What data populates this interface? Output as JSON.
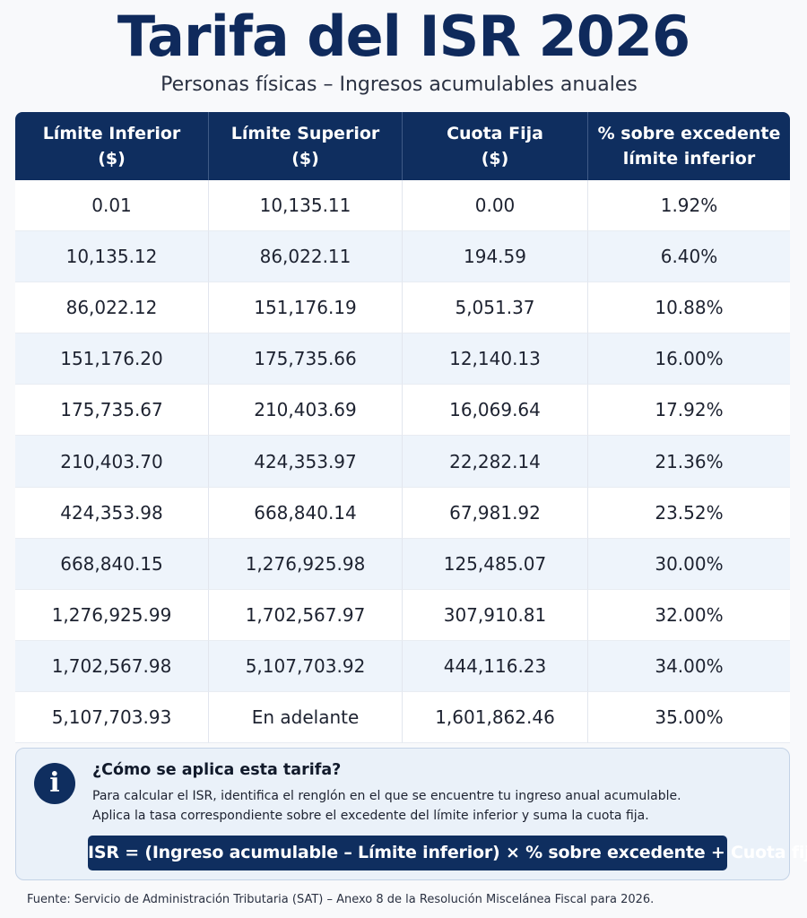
{
  "title": "Tarifa del ISR 2026",
  "subtitle": "Personas físicas – Ingresos acumulables anuales",
  "table": {
    "headers": [
      {
        "line1": "Límite Inferior",
        "line2": "($)"
      },
      {
        "line1": "Límite Superior",
        "line2": "($)"
      },
      {
        "line1": "Cuota Fija",
        "line2": "($)"
      },
      {
        "line1": "% sobre excedente",
        "line2": "límite inferior"
      }
    ],
    "rows": [
      [
        "0.01",
        "10,135.11",
        "0.00",
        "1.92%"
      ],
      [
        "10,135.12",
        "86,022.11",
        "194.59",
        "6.40%"
      ],
      [
        "86,022.12",
        "151,176.19",
        "5,051.37",
        "10.88%"
      ],
      [
        "151,176.20",
        "175,735.66",
        "12,140.13",
        "16.00%"
      ],
      [
        "175,735.67",
        "210,403.69",
        "16,069.64",
        "17.92%"
      ],
      [
        "210,403.70",
        "424,353.97",
        "22,282.14",
        "21.36%"
      ],
      [
        "424,353.98",
        "668,840.14",
        "67,981.92",
        "23.52%"
      ],
      [
        "668,840.15",
        "1,276,925.98",
        "125,485.07",
        "30.00%"
      ],
      [
        "1,276,925.99",
        "1,702,567.97",
        "307,910.81",
        "32.00%"
      ],
      [
        "1,702,567.98",
        "5,107,703.92",
        "444,116.23",
        "34.00%"
      ],
      [
        "5,107,703.93",
        "En adelante",
        "1,601,862.46",
        "35.00%"
      ]
    ]
  },
  "info": {
    "icon": "info-icon",
    "icon_glyph": "i",
    "heading": "¿Cómo se aplica esta tarifa?",
    "line1": "Para calcular el ISR, identifica el renglón en el que se encuentre tu ingreso anual acumulable.",
    "line2": "Aplica la tasa correspondiente sobre el excedente del límite inferior y suma la cuota fija.",
    "formula": "ISR = (Ingreso acumulable – Límite inferior) × % sobre excedente + Cuota fija"
  },
  "source": "Fuente: Servicio de Administración Tributaria (SAT) – Anexo 8 de la Resolución Miscelánea Fiscal para 2026.",
  "colors": {
    "title": "#0f2a5c",
    "header_bg": "#0f2e5f",
    "row_alt": "#eef4fb",
    "info_bg": "#eaf1f9"
  }
}
